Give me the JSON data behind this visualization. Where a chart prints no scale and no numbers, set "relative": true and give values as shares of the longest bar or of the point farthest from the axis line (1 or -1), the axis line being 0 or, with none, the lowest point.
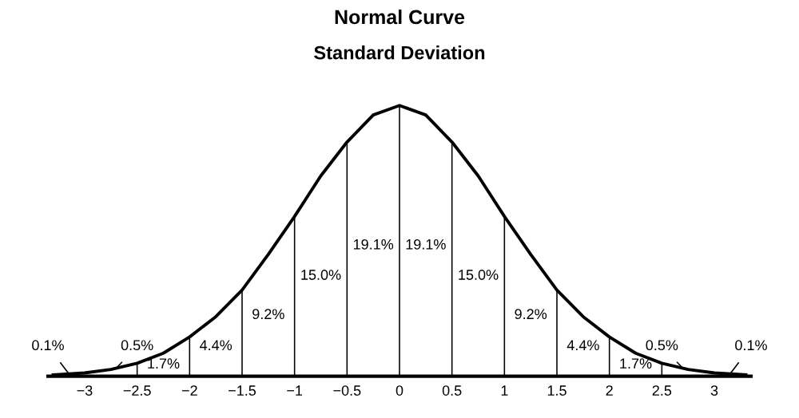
{
  "chart_data": {
    "type": "line",
    "title": "Normal Curve",
    "subtitle": "Standard Deviation",
    "relative": true,
    "xlim": [
      -3.35,
      3.35
    ],
    "xticks": [
      {
        "value": -3,
        "label": "−3"
      },
      {
        "value": -2.5,
        "label": "−2.5"
      },
      {
        "value": -2,
        "label": "−2"
      },
      {
        "value": -1.5,
        "label": "−1.5"
      },
      {
        "value": -1,
        "label": "−1"
      },
      {
        "value": -0.5,
        "label": "−0.5"
      },
      0,
      0.5,
      1,
      1.5,
      2,
      2.5,
      3
    ],
    "grid": false,
    "legend": false,
    "marker": "none",
    "line_style": "solid",
    "series": [
      {
        "color": "#000000",
        "x": [
          -3.3,
          -3,
          -2.75,
          -2.5,
          -2.25,
          -2,
          -1.75,
          -1.5,
          -1.25,
          -1,
          -0.75,
          -0.5,
          -0.25,
          0,
          0.25,
          0.5,
          0.75,
          1,
          1.25,
          1.5,
          1.75,
          2,
          2.25,
          2.5,
          2.75,
          3,
          3.3
        ],
        "values": [
          0.005,
          0.012,
          0.025,
          0.048,
          0.085,
          0.145,
          0.22,
          0.318,
          0.45,
          0.59,
          0.74,
          0.865,
          0.965,
          1,
          0.965,
          0.865,
          0.74,
          0.59,
          0.45,
          0.318,
          0.22,
          0.145,
          0.085,
          0.048,
          0.025,
          0.012,
          0.005
        ]
      },
      {
        "type": "bar",
        "color": "#000000",
        "x": [
          -2.5,
          -2,
          -1.5,
          -1,
          -0.5,
          0,
          0.5,
          1,
          1.5,
          2,
          2.5
        ],
        "values": [
          0.048,
          0.145,
          0.318,
          0.59,
          0.865,
          1,
          0.865,
          0.59,
          0.318,
          0.145,
          0.048
        ]
      }
    ],
    "annotations": [
      "0.1%",
      "0.5%",
      "1.7%",
      "4.4%",
      "9.2%",
      "15.0%",
      "19.1%",
      "19.1%",
      "15.0%",
      "9.2%",
      "4.4%",
      "1.7%",
      "0.5%",
      "0.1%"
    ]
  }
}
